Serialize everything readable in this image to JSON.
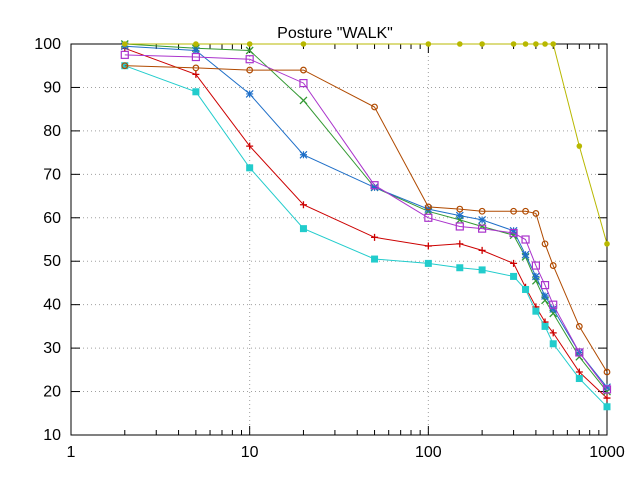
{
  "chart_data": {
    "type": "line",
    "title": "Posture \"WALK\"",
    "xlabel": "",
    "ylabel": "",
    "xscale": "log",
    "xlim": [
      1,
      1000
    ],
    "ylim": [
      10,
      100
    ],
    "x_ticks": [
      1,
      10,
      100,
      1000
    ],
    "x_tick_labels": [
      "1",
      "10",
      "100",
      "1000"
    ],
    "y_ticks": [
      10,
      20,
      30,
      40,
      50,
      60,
      70,
      80,
      90,
      100
    ],
    "y_tick_labels": [
      "10",
      "20",
      "30",
      "40",
      "50",
      "60",
      "70",
      "80",
      "90",
      "100"
    ],
    "grid": true,
    "legend": "none",
    "series": [
      {
        "name": "series-red-plus",
        "color": "#cc0000",
        "marker": "plus",
        "x": [
          2,
          5,
          10,
          20,
          50,
          100,
          150,
          200,
          300,
          350,
          400,
          450,
          500,
          700,
          1000
        ],
        "y": [
          99,
          93,
          76.5,
          63,
          55.5,
          53.5,
          54,
          52.5,
          49.5,
          44,
          39.5,
          36,
          33.5,
          24.5,
          18.5
        ]
      },
      {
        "name": "series-green-x",
        "color": "#339933",
        "marker": "x",
        "x": [
          2,
          5,
          10,
          20,
          50,
          100,
          150,
          200,
          300,
          350,
          400,
          450,
          500,
          700,
          1000
        ],
        "y": [
          100,
          99,
          98.5,
          87,
          67,
          61.5,
          59.5,
          58,
          56,
          51,
          45.5,
          41,
          38,
          28,
          20
        ]
      },
      {
        "name": "series-blue-star",
        "color": "#1f6fc8",
        "marker": "star",
        "x": [
          2,
          5,
          10,
          20,
          50,
          100,
          150,
          200,
          300,
          350,
          400,
          450,
          500,
          700,
          1000
        ],
        "y": [
          99.5,
          98.5,
          88.5,
          74.5,
          67,
          62,
          60.5,
          59.5,
          57,
          51.5,
          46.5,
          42,
          39,
          29,
          21
        ]
      },
      {
        "name": "series-magenta-square",
        "color": "#aa33cc",
        "marker": "square",
        "x": [
          2,
          5,
          10,
          20,
          50,
          100,
          150,
          200,
          300,
          350,
          400,
          450,
          500,
          700,
          1000
        ],
        "y": [
          97.5,
          97,
          96.5,
          91,
          67.5,
          60,
          58,
          57.5,
          56.5,
          55,
          49,
          44.5,
          40,
          29,
          20.5
        ]
      },
      {
        "name": "series-cyan-filled-square",
        "color": "#22cccc",
        "marker": "filled-square",
        "x": [
          2,
          5,
          10,
          20,
          50,
          100,
          150,
          200,
          300,
          350,
          400,
          450,
          500,
          700,
          1000
        ],
        "y": [
          95,
          89,
          71.5,
          57.5,
          50.5,
          49.5,
          48.5,
          48,
          46.5,
          43.5,
          38.5,
          35,
          31,
          23,
          16.5
        ]
      },
      {
        "name": "series-olive-filled-circle",
        "color": "#b8b800",
        "marker": "filled-circle",
        "x": [
          2,
          5,
          10,
          20,
          100,
          150,
          200,
          300,
          350,
          400,
          450,
          500,
          700,
          1000
        ],
        "y": [
          100,
          100,
          100,
          100,
          100,
          100,
          100,
          100,
          100,
          100,
          100,
          100,
          76.5,
          54
        ]
      },
      {
        "name": "series-brown-circle",
        "color": "#b04a00",
        "marker": "circle",
        "x": [
          2,
          5,
          10,
          20,
          50,
          100,
          150,
          200,
          300,
          350,
          400,
          450,
          500,
          700,
          1000
        ],
        "y": [
          95,
          94.5,
          94,
          94,
          85.5,
          62.5,
          62,
          61.5,
          61.5,
          61.5,
          61,
          54,
          49,
          35,
          24.5
        ]
      }
    ]
  }
}
